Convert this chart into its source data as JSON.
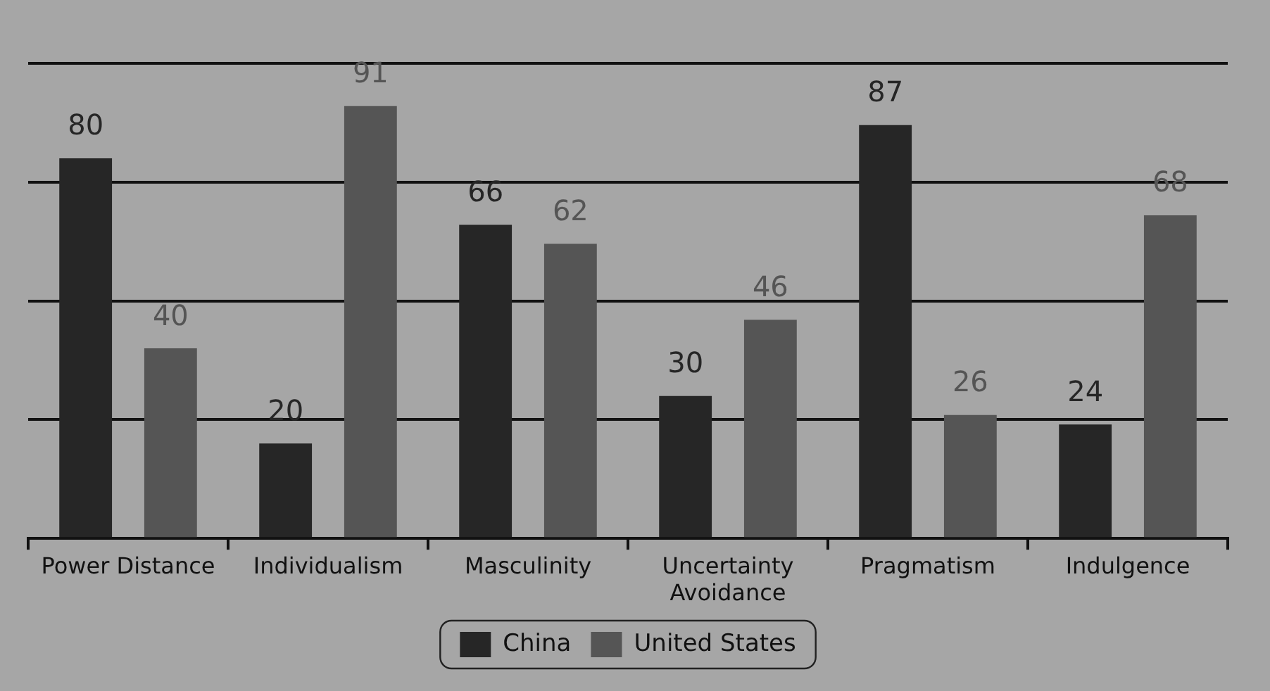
{
  "chart_data": {
    "type": "bar",
    "categories": [
      "Power Distance",
      "Individualism",
      "Masculinity",
      "Uncertainty Avoidance",
      "Pragmatism",
      "Indulgence"
    ],
    "series": [
      {
        "name": "China",
        "color": "#262626",
        "values": [
          80,
          20,
          66,
          30,
          87,
          24
        ]
      },
      {
        "name": "United States",
        "color": "#555555",
        "values": [
          40,
          91,
          62,
          46,
          26,
          68
        ]
      }
    ],
    "ylim": [
      0,
      100
    ],
    "yticks": [
      0,
      25,
      50,
      75,
      100
    ],
    "tick_labels": "x",
    "grid": "y",
    "legend": "bottom",
    "data_labels": true
  }
}
